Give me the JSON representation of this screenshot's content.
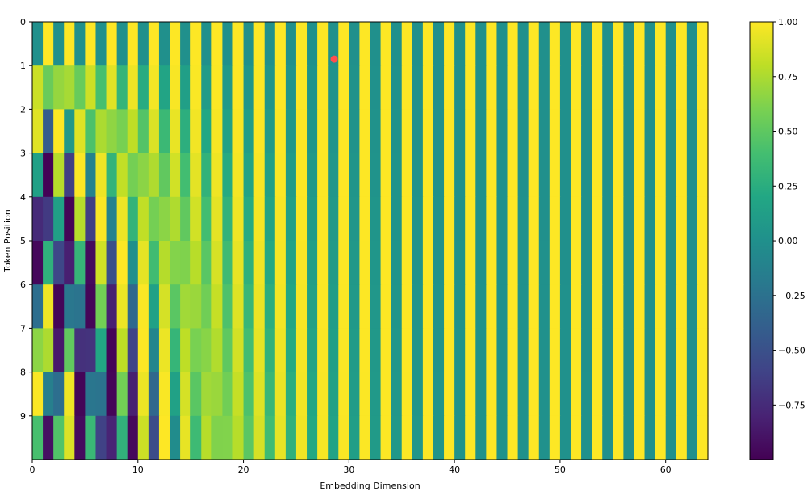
{
  "chart_data": {
    "type": "heatmap",
    "title": "",
    "xlabel": "Embedding Dimension",
    "ylabel": "Token Position",
    "n_positions": 10,
    "n_dims": 64,
    "xlim": [
      0,
      64
    ],
    "ylim": [
      10,
      0
    ],
    "xticks": [
      "0",
      "10",
      "20",
      "30",
      "40",
      "50",
      "60"
    ],
    "yticks": [
      "0",
      "1",
      "2",
      "3",
      "4",
      "5",
      "6",
      "7",
      "8",
      "9"
    ],
    "colorbar": {
      "range": [
        -1.0,
        1.0
      ],
      "ticks": [
        "1.00",
        "0.75",
        "0.50",
        "0.25",
        "0.00",
        "−0.25",
        "−0.50",
        "−0.75"
      ]
    },
    "colormap": "viridis",
    "encoding": "sinusoidal positional encoding: even dims sin(pos/10000^(d/64)), odd dims cos(pos/10000^((d-1)/64))",
    "grid": false,
    "marker": {
      "x": 28.6,
      "y": 0.85,
      "color": "#ff4d4d"
    }
  }
}
